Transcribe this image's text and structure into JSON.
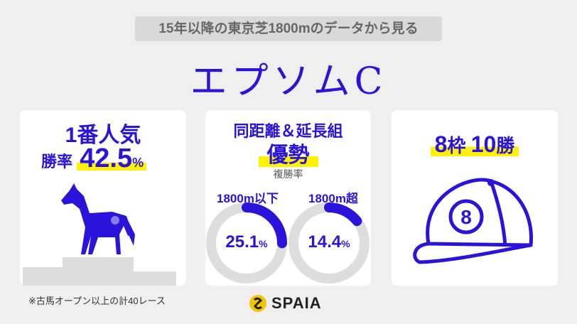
{
  "subtitle": "15年以降の東京芝1800mのデータから見る",
  "title": "エプソムC",
  "card1": {
    "line1": "1番人気",
    "label": "勝率",
    "value": "42.5",
    "unit": "%"
  },
  "card2": {
    "line1": "同距離＆延長組",
    "headline": "優勢",
    "metric": "複勝率",
    "donuts": [
      {
        "label": "1800m以下",
        "value": "25.1",
        "unit": "%",
        "percent": 25.1
      },
      {
        "label": "1800m超",
        "value": "14.4",
        "unit": "%",
        "percent": 14.4
      }
    ]
  },
  "card3": {
    "gate": "8",
    "gate_unit": "枠",
    "wins": "10",
    "wins_unit": "勝",
    "cap_number": "8"
  },
  "footnote": "※古馬オープン以上の計40レース",
  "brand": "SPAIA",
  "colors": {
    "accent": "#2a14dc",
    "highlight": "#fff200",
    "track": "#dddddd"
  }
}
